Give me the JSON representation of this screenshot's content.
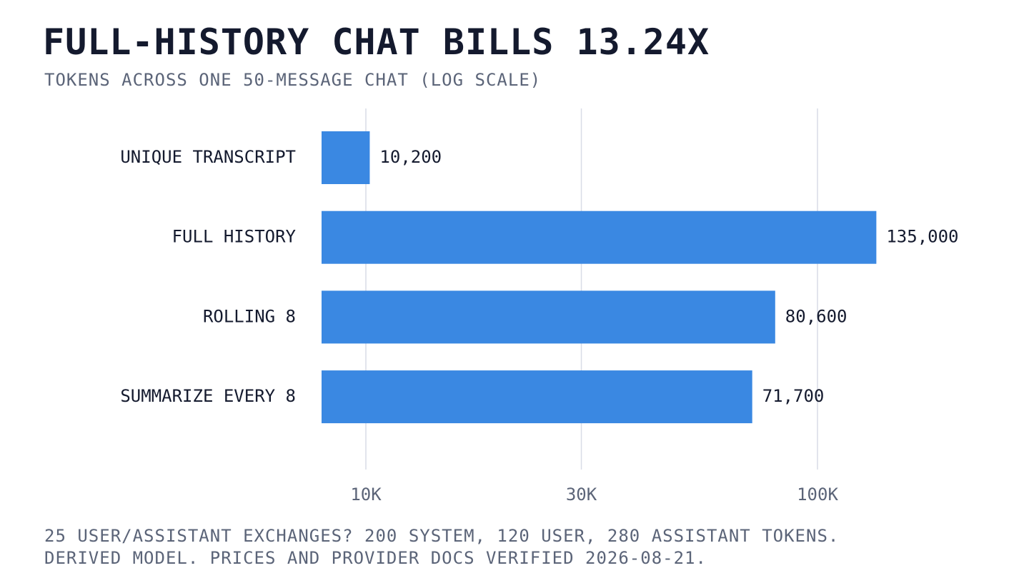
{
  "chart_data": {
    "type": "bar",
    "orientation": "horizontal",
    "title": "FULL-HISTORY CHAT BILLS 13.24X",
    "subtitle": "TOKENS ACROSS ONE 50-MESSAGE CHAT (LOG SCALE)",
    "categories": [
      "UNIQUE TRANSCRIPT",
      "FULL HISTORY",
      "ROLLING 8",
      "SUMMARIZE EVERY 8"
    ],
    "values": [
      10200,
      135000,
      80600,
      71700
    ],
    "value_labels": [
      "10,200",
      "135,000",
      "80,600",
      "71,700"
    ],
    "x_scale": "log",
    "x_ticks": [
      10000,
      30000,
      100000
    ],
    "x_tick_labels": [
      "10K",
      "30K",
      "100K"
    ],
    "xlim": [
      8000,
      200000
    ],
    "grid": "vertical",
    "bar_color": "#3a88e2",
    "footnotes": [
      "25 USER/ASSISTANT EXCHANGES? 200 SYSTEM, 120 USER, 280 ASSISTANT TOKENS.",
      "DERIVED MODEL. PRICES AND PROVIDER DOCS VERIFIED 2026-08-21."
    ]
  }
}
